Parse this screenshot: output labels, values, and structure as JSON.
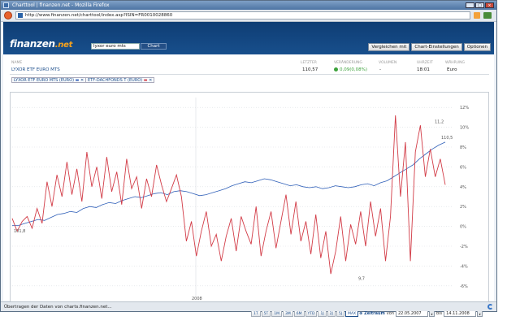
{
  "window": {
    "title": "Charttool | finanzen.net - Mozilla Firefox",
    "url": "http://www.finanzen.net/charttool/index.asp?ISIN=FR0010028860"
  },
  "site": {
    "logo_main": "finanzen",
    "logo_net": ".net",
    "search_value": "lyxor euro mts",
    "search_button": "Chart"
  },
  "toolbar": {
    "compare": "Vergleichen mit",
    "settings": "Chart-Einstellungen",
    "options": "Optionen"
  },
  "table": {
    "headers": {
      "name": "NAME",
      "last": "LETZTER",
      "change": "VERÄNDERUNG",
      "volume": "VOLUMEN",
      "time": "UHRZEIT",
      "currency": "WÄHRUNG"
    },
    "row": {
      "name": "LYXOR ETF EURO MTS",
      "last": "110,57",
      "change": "0,09(0,08%)",
      "volume": "-",
      "time": "18:01",
      "currency": "Euro"
    }
  },
  "tags": [
    {
      "label": "LYXOR ETF EURO MTS (EURO)"
    },
    {
      "label": "ETF-DACHFONDS T (EURO)"
    }
  ],
  "chart_data": {
    "type": "line",
    "y_ticks": [
      "12%",
      "10%",
      "8%",
      "6%",
      "4%",
      "2%",
      "0%",
      "-2%",
      "-4%",
      "-6%"
    ],
    "ylim": [
      -7,
      13
    ],
    "x_label": "2008",
    "annotations": {
      "start": "101,8",
      "high": "11,2",
      "low": "9,7",
      "end": "110,5"
    },
    "colors": {
      "blue": "#2f5fb8",
      "red": "#d23b46"
    },
    "series": [
      {
        "values": [
          0.1,
          0.1,
          0.3,
          0.5,
          0.7,
          0.6,
          0.9,
          1.2,
          1.3,
          1.5,
          1.4,
          1.8,
          2.0,
          1.9,
          2.2,
          2.4,
          2.3,
          2.6,
          2.8,
          3.0,
          2.9,
          3.1,
          3.3,
          3.4,
          3.2,
          3.5,
          3.6,
          3.5,
          3.3,
          3.1,
          3.2,
          3.4,
          3.6,
          3.8,
          4.1,
          4.3,
          4.5,
          4.4,
          4.6,
          4.8,
          4.7,
          4.5,
          4.3,
          4.1,
          4.2,
          4.0,
          3.9,
          4.0,
          3.8,
          3.9,
          4.1,
          4.0,
          3.9,
          4.0,
          4.2,
          4.3,
          4.1,
          4.4,
          4.6,
          5.0,
          5.4,
          5.8,
          6.2,
          6.8,
          7.3,
          7.8,
          8.2,
          8.5
        ]
      },
      {
        "values": [
          0.8,
          -0.5,
          0.5,
          1.0,
          -0.2,
          1.8,
          0.3,
          4.5,
          2.0,
          5.2,
          3.0,
          6.5,
          3.2,
          5.8,
          2.5,
          7.5,
          4.0,
          6.0,
          2.8,
          7.0,
          3.5,
          5.5,
          2.2,
          6.8,
          3.8,
          5.0,
          1.8,
          4.8,
          3.0,
          6.2,
          4.2,
          2.5,
          3.8,
          5.2,
          3.0,
          -1.5,
          0.5,
          -3.0,
          -0.5,
          1.5,
          -2.0,
          -0.8,
          -3.5,
          -1.0,
          0.8,
          -2.5,
          1.0,
          -0.5,
          -1.8,
          2.0,
          -3.0,
          -0.5,
          1.5,
          -2.2,
          0.5,
          3.2,
          -0.8,
          2.5,
          -1.5,
          0.5,
          -2.8,
          1.2,
          -3.2,
          -0.5,
          -4.8,
          -2.5,
          1.0,
          -3.5,
          0.2,
          -1.8,
          1.5,
          -2.0,
          2.5,
          -1.0,
          1.8,
          -3.5,
          1.0,
          11.2,
          3.0,
          8.5,
          -3.5,
          7.5,
          10.2,
          5.0,
          7.8,
          5.0,
          6.8,
          4.2
        ]
      }
    ]
  },
  "range_buttons": [
    "1T",
    "5T",
    "1M",
    "3M",
    "6M",
    "YTD",
    "1J",
    "2J",
    "5J",
    "MAX"
  ],
  "range_selected": "MAX",
  "zeitraum": {
    "label": "Zeitraum",
    "from_label": "von",
    "from": "22.05.2007",
    "to_label": "bis",
    "to": "14.11.2008"
  },
  "status": "Übertragen der Daten von charts.finanzen.net..."
}
